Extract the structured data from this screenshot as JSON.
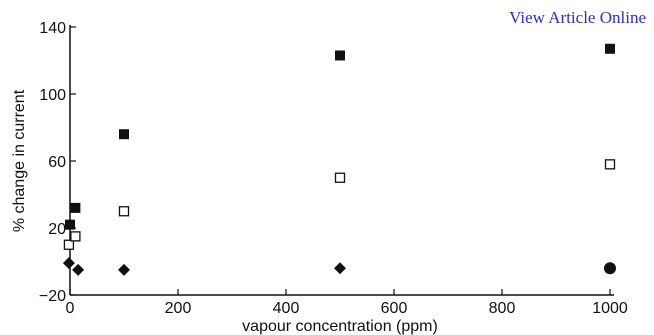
{
  "header": {
    "link_label": "View Article Online",
    "link_color": "#2a2ae0"
  },
  "chart_data": {
    "type": "scatter",
    "title": "",
    "xlabel": "vapour concentration (ppm)",
    "ylabel": "% change in current",
    "xlim": [
      0,
      1000
    ],
    "ylim": [
      -20,
      140
    ],
    "xticks": [
      0,
      200,
      400,
      600,
      800,
      1000
    ],
    "yticks": [
      -20,
      20,
      60,
      100,
      140
    ],
    "grid": false,
    "legend": "none",
    "series": [
      {
        "marker": "filled-square",
        "color": "#111111",
        "points": [
          [
            0,
            22
          ],
          [
            10,
            32
          ],
          [
            100,
            76
          ],
          [
            500,
            123
          ],
          [
            1000,
            127
          ]
        ]
      },
      {
        "marker": "open-square",
        "color": "#111111",
        "points": [
          [
            -2,
            10
          ],
          [
            10,
            15
          ],
          [
            100,
            30
          ],
          [
            500,
            50
          ],
          [
            1000,
            58
          ]
        ]
      },
      {
        "marker": "filled-diamond",
        "color": "#111111",
        "points": [
          [
            -2,
            -1
          ],
          [
            15,
            -5
          ],
          [
            100,
            -5
          ],
          [
            500,
            -4
          ]
        ]
      },
      {
        "marker": "filled-circle",
        "color": "#111111",
        "points": [
          [
            1000,
            -4
          ]
        ]
      }
    ]
  }
}
